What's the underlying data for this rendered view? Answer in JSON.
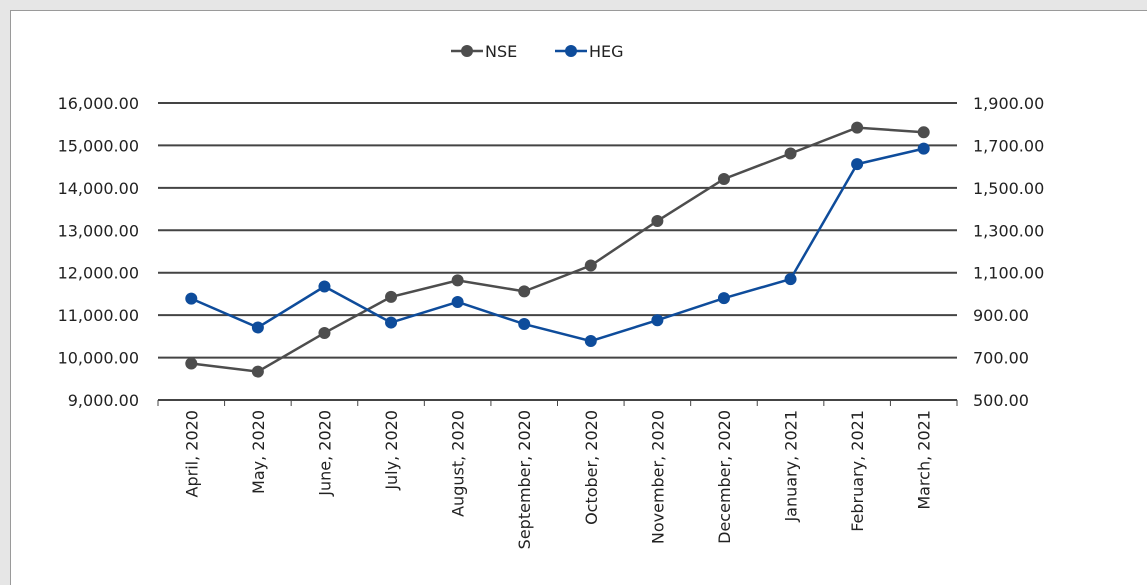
{
  "chart_data": {
    "type": "line",
    "categories": [
      "April, 2020",
      "May, 2020",
      "June, 2020",
      "July, 2020",
      "August, 2020",
      "September, 2020",
      "October, 2020",
      "November, 2020",
      "December, 2020",
      "January, 2021",
      "February, 2021",
      "March, 2021"
    ],
    "series": [
      {
        "name": "NSE",
        "axis": "left",
        "color": "#4d4d4d",
        "values": [
          9860,
          9670,
          10580,
          11430,
          11820,
          11560,
          12170,
          13220,
          14210,
          14810,
          15420,
          15310
        ]
      },
      {
        "name": "HEG",
        "axis": "right",
        "color": "#0e4c9b",
        "values": [
          978,
          842,
          1035,
          865,
          962,
          858,
          778,
          876,
          980,
          1070,
          1612,
          1685
        ]
      }
    ],
    "y_left": {
      "min": 9000,
      "max": 16000,
      "ticks": [
        9000,
        10000,
        11000,
        12000,
        13000,
        14000,
        15000,
        16000
      ],
      "tick_labels": [
        "9,000.00",
        "10,000.00",
        "11,000.00",
        "12,000.00",
        "13,000.00",
        "14,000.00",
        "15,000.00",
        "16,000.00"
      ]
    },
    "y_right": {
      "min": 500,
      "max": 1900,
      "ticks": [
        500,
        700,
        900,
        1100,
        1300,
        1500,
        1700,
        1900
      ],
      "tick_labels": [
        "500.00",
        "700.00",
        "900.00",
        "1,100.00",
        "1,300.00",
        "1,500.00",
        "1,700.00",
        "1,900.00"
      ]
    },
    "grid": true,
    "legend_position": "top-center",
    "title": "",
    "xlabel": "",
    "ylabel": ""
  }
}
